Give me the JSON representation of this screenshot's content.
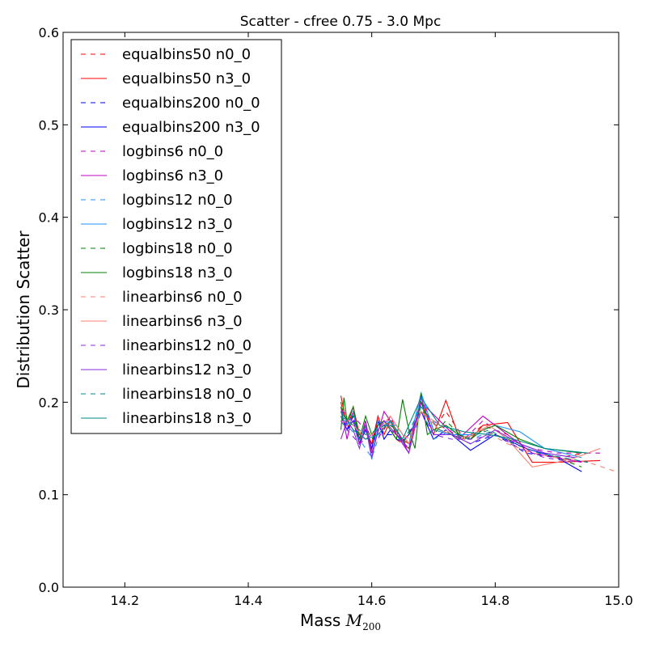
{
  "chart_data": {
    "type": "line",
    "title": "Scatter - cfree 0.75 - 3.0 Mpc",
    "xlabel_text": "Mass ",
    "xlabel_math": "M",
    "xlabel_sub": "200",
    "ylabel": "Distribution Scatter",
    "xlim": [
      14.1,
      15.0
    ],
    "ylim": [
      0.0,
      0.6
    ],
    "xticks": [
      14.2,
      14.4,
      14.6,
      14.8,
      15.0
    ],
    "xtick_labels": [
      "14.2",
      "14.4",
      "14.6",
      "14.8",
      "15.0"
    ],
    "yticks": [
      0.0,
      0.1,
      0.2,
      0.3,
      0.4,
      0.5,
      0.6
    ],
    "ytick_labels": [
      "0.0",
      "0.1",
      "0.2",
      "0.3",
      "0.4",
      "0.5",
      "0.6"
    ],
    "grid": false,
    "legend_position": "upper-left",
    "series": [
      {
        "name": "equalbins50 n0_0",
        "color": "#ff0000",
        "style": "dashed",
        "x": [
          14.55,
          14.56,
          14.57,
          14.58,
          14.59,
          14.6,
          14.61,
          14.62,
          14.63,
          14.64,
          14.66,
          14.68,
          14.7,
          14.72,
          14.75,
          14.78,
          14.82,
          14.86,
          14.9,
          14.95
        ],
        "y": [
          0.2,
          0.17,
          0.19,
          0.16,
          0.175,
          0.15,
          0.18,
          0.17,
          0.185,
          0.16,
          0.15,
          0.205,
          0.17,
          0.19,
          0.16,
          0.175,
          0.165,
          0.145,
          0.14,
          0.145
        ]
      },
      {
        "name": "equalbins50 n3_0",
        "color": "#ff0000",
        "style": "solid",
        "x": [
          14.55,
          14.56,
          14.57,
          14.58,
          14.59,
          14.6,
          14.61,
          14.62,
          14.63,
          14.64,
          14.66,
          14.68,
          14.7,
          14.72,
          14.74,
          14.76,
          14.78,
          14.82,
          14.86,
          14.9,
          14.97
        ],
        "y": [
          0.207,
          0.175,
          0.195,
          0.165,
          0.17,
          0.155,
          0.185,
          0.165,
          0.18,
          0.165,
          0.155,
          0.2,
          0.165,
          0.202,
          0.165,
          0.16,
          0.175,
          0.178,
          0.135,
          0.135,
          0.137
        ]
      },
      {
        "name": "equalbins200 n0_0",
        "color": "#0000ff",
        "style": "dashed",
        "x": [
          14.55,
          14.56,
          14.57,
          14.58,
          14.59,
          14.6,
          14.61,
          14.62,
          14.64,
          14.66,
          14.68,
          14.7,
          14.73,
          14.76,
          14.8,
          14.85,
          14.9,
          14.95
        ],
        "y": [
          0.19,
          0.17,
          0.185,
          0.16,
          0.175,
          0.15,
          0.175,
          0.165,
          0.165,
          0.15,
          0.2,
          0.165,
          0.165,
          0.155,
          0.165,
          0.145,
          0.14,
          0.135
        ]
      },
      {
        "name": "equalbins200 n3_0",
        "color": "#0000ff",
        "style": "solid",
        "x": [
          14.55,
          14.56,
          14.57,
          14.58,
          14.59,
          14.6,
          14.61,
          14.62,
          14.63,
          14.64,
          14.65,
          14.66,
          14.68,
          14.7,
          14.72,
          14.76,
          14.8,
          14.85,
          14.9,
          14.94
        ],
        "y": [
          0.185,
          0.17,
          0.18,
          0.155,
          0.17,
          0.15,
          0.18,
          0.16,
          0.17,
          0.16,
          0.158,
          0.165,
          0.19,
          0.16,
          0.17,
          0.148,
          0.165,
          0.15,
          0.14,
          0.125
        ]
      },
      {
        "name": "logbins6 n0_0",
        "color": "#c000c0",
        "style": "dashed",
        "x": [
          14.55,
          14.57,
          14.59,
          14.61,
          14.63,
          14.65,
          14.68,
          14.71,
          14.75,
          14.78,
          14.82,
          14.86,
          14.9,
          14.97
        ],
        "y": [
          0.19,
          0.185,
          0.17,
          0.16,
          0.185,
          0.155,
          0.19,
          0.175,
          0.16,
          0.18,
          0.16,
          0.15,
          0.145,
          0.145
        ]
      },
      {
        "name": "logbins6 n3_0",
        "color": "#c000c0",
        "style": "solid",
        "x": [
          14.55,
          14.56,
          14.57,
          14.58,
          14.59,
          14.6,
          14.62,
          14.64,
          14.66,
          14.68,
          14.71,
          14.74,
          14.78,
          14.82,
          14.86,
          14.9,
          14.94
        ],
        "y": [
          0.195,
          0.16,
          0.19,
          0.155,
          0.18,
          0.145,
          0.19,
          0.17,
          0.145,
          0.2,
          0.18,
          0.16,
          0.185,
          0.165,
          0.145,
          0.14,
          0.135
        ]
      },
      {
        "name": "logbins12 n0_0",
        "color": "#1e90ff",
        "style": "dashed",
        "x": [
          14.55,
          14.56,
          14.58,
          14.6,
          14.62,
          14.64,
          14.66,
          14.68,
          14.7,
          14.73,
          14.76,
          14.8,
          14.84,
          14.88,
          14.93
        ],
        "y": [
          0.19,
          0.175,
          0.16,
          0.14,
          0.18,
          0.175,
          0.155,
          0.195,
          0.16,
          0.17,
          0.16,
          0.17,
          0.155,
          0.145,
          0.14
        ]
      },
      {
        "name": "logbins12 n3_0",
        "color": "#1e90ff",
        "style": "solid",
        "x": [
          14.55,
          14.56,
          14.57,
          14.58,
          14.59,
          14.6,
          14.61,
          14.62,
          14.64,
          14.66,
          14.68,
          14.7,
          14.73,
          14.76,
          14.8,
          14.84,
          14.88,
          14.94
        ],
        "y": [
          0.185,
          0.175,
          0.19,
          0.16,
          0.175,
          0.138,
          0.18,
          0.175,
          0.175,
          0.155,
          0.21,
          0.17,
          0.165,
          0.165,
          0.175,
          0.168,
          0.15,
          0.14
        ]
      },
      {
        "name": "logbins18 n0_0",
        "color": "#008000",
        "style": "dashed",
        "x": [
          14.55,
          14.56,
          14.57,
          14.58,
          14.59,
          14.6,
          14.62,
          14.64,
          14.66,
          14.68,
          14.7,
          14.72,
          14.75,
          14.78,
          14.82,
          14.86,
          14.9,
          14.94
        ],
        "y": [
          0.195,
          0.18,
          0.185,
          0.16,
          0.175,
          0.16,
          0.18,
          0.17,
          0.15,
          0.2,
          0.165,
          0.18,
          0.16,
          0.17,
          0.16,
          0.15,
          0.14,
          0.13
        ]
      },
      {
        "name": "logbins18 n3_0",
        "color": "#008000",
        "style": "solid",
        "x": [
          14.55,
          14.555,
          14.56,
          14.57,
          14.58,
          14.59,
          14.6,
          14.61,
          14.62,
          14.63,
          14.64,
          14.65,
          14.66,
          14.67,
          14.68,
          14.69,
          14.7,
          14.72,
          14.74,
          14.76,
          14.78,
          14.8,
          14.84,
          14.88,
          14.94
        ],
        "y": [
          0.17,
          0.205,
          0.18,
          0.195,
          0.16,
          0.185,
          0.165,
          0.175,
          0.18,
          0.17,
          0.16,
          0.203,
          0.17,
          0.15,
          0.21,
          0.165,
          0.17,
          0.175,
          0.165,
          0.16,
          0.17,
          0.175,
          0.16,
          0.15,
          0.145
        ]
      },
      {
        "name": "linearbins6 n0_0",
        "color": "#fa8072",
        "style": "dashed",
        "x": [
          14.55,
          14.57,
          14.59,
          14.61,
          14.63,
          14.66,
          14.68,
          14.71,
          14.74,
          14.78,
          14.82,
          14.86,
          14.9,
          14.95,
          15.0
        ],
        "y": [
          0.18,
          0.175,
          0.165,
          0.17,
          0.18,
          0.16,
          0.19,
          0.175,
          0.16,
          0.17,
          0.155,
          0.145,
          0.14,
          0.135,
          0.124
        ]
      },
      {
        "name": "linearbins6 n3_0",
        "color": "#fa8072",
        "style": "solid",
        "x": [
          14.55,
          14.57,
          14.59,
          14.61,
          14.63,
          14.66,
          14.68,
          14.71,
          14.75,
          14.79,
          14.82,
          14.86,
          14.9,
          14.93,
          14.97
        ],
        "y": [
          0.185,
          0.175,
          0.16,
          0.17,
          0.185,
          0.155,
          0.19,
          0.17,
          0.16,
          0.175,
          0.16,
          0.13,
          0.135,
          0.14,
          0.15
        ]
      },
      {
        "name": "linearbins12 n0_0",
        "color": "#8a2be2",
        "style": "dashed",
        "x": [
          14.55,
          14.56,
          14.58,
          14.6,
          14.62,
          14.64,
          14.66,
          14.68,
          14.7,
          14.73,
          14.76,
          14.8,
          14.84,
          14.88,
          14.93
        ],
        "y": [
          0.18,
          0.17,
          0.155,
          0.165,
          0.175,
          0.165,
          0.15,
          0.19,
          0.165,
          0.16,
          0.16,
          0.165,
          0.15,
          0.14,
          0.135
        ]
      },
      {
        "name": "linearbins12 n3_0",
        "color": "#8a2be2",
        "style": "solid",
        "x": [
          14.55,
          14.56,
          14.57,
          14.58,
          14.59,
          14.6,
          14.61,
          14.62,
          14.64,
          14.66,
          14.68,
          14.7,
          14.73,
          14.76,
          14.8,
          14.84,
          14.88,
          14.93
        ],
        "y": [
          0.16,
          0.18,
          0.17,
          0.15,
          0.175,
          0.14,
          0.17,
          0.18,
          0.165,
          0.145,
          0.205,
          0.165,
          0.165,
          0.155,
          0.17,
          0.155,
          0.145,
          0.14
        ]
      },
      {
        "name": "linearbins18 n0_0",
        "color": "#008b8b",
        "style": "dashed",
        "x": [
          14.55,
          14.57,
          14.59,
          14.61,
          14.63,
          14.65,
          14.68,
          14.71,
          14.75,
          14.79,
          14.83,
          14.87,
          14.91,
          14.95
        ],
        "y": [
          0.185,
          0.175,
          0.165,
          0.17,
          0.18,
          0.155,
          0.195,
          0.17,
          0.16,
          0.17,
          0.155,
          0.145,
          0.14,
          0.135
        ]
      },
      {
        "name": "linearbins18 n3_0",
        "color": "#008b8b",
        "style": "solid",
        "x": [
          14.55,
          14.57,
          14.59,
          14.61,
          14.63,
          14.65,
          14.68,
          14.71,
          14.75,
          14.79,
          14.83,
          14.88,
          14.95
        ],
        "y": [
          0.19,
          0.17,
          0.16,
          0.165,
          0.18,
          0.16,
          0.205,
          0.175,
          0.168,
          0.165,
          0.16,
          0.15,
          0.145
        ]
      }
    ]
  }
}
